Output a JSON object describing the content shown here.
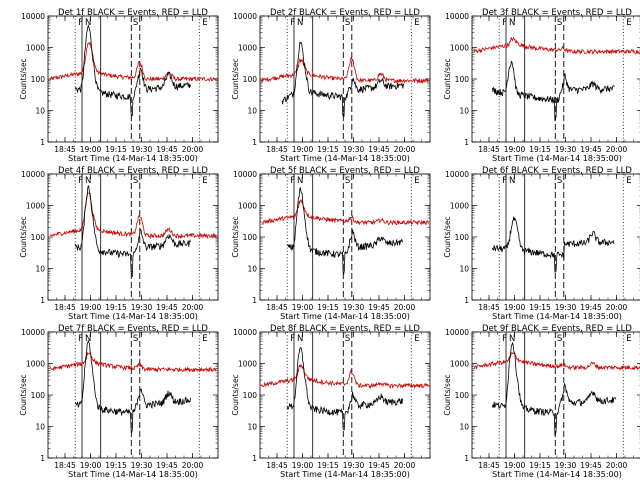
{
  "figure": {
    "xlabel": "Start Time (14-Mar-14 18:35:00)",
    "ylabel": "Counts/sec"
  },
  "chart_data": [
    {
      "type": "line",
      "title": "Det 1f BLACK = Events, RED = LLD",
      "ylim": [
        1,
        10000
      ],
      "yscale": "log",
      "xlim": [
        "18:35",
        "20:15"
      ],
      "x_ticks": [
        "18:45",
        "19:00",
        "19:15",
        "19:30",
        "19:45",
        "20:00"
      ],
      "y_ticks": [
        "1",
        "10",
        "100",
        "1000",
        "10000"
      ],
      "markers": [
        "F",
        "N",
        "S",
        "E"
      ],
      "events": {
        "red": {
          "base": 100,
          "start": [
            130,
            0,
            0
          ],
          "peak": [
            2.2,
            5.0,
            3.2,
            1.6
          ],
          "end": [
            125,
            0,
            0
          ]
        },
        "black": {
          "base": 25,
          "peak": [
            9.0,
            17,
            5.4,
            2.4
          ],
          "pre": [
            50,
            18,
            0
          ],
          "post": [
            45,
            65,
            0
          ],
          "start": "18:51",
          "end": "19:59"
        }
      }
    },
    {
      "type": "line",
      "title": "Det 2f BLACK = Events, RED = LLD",
      "ylim": [
        1,
        10000
      ],
      "yscale": "log",
      "xlim": [
        "18:35",
        "20:15"
      ],
      "x_ticks": [
        "18:45",
        "19:00",
        "19:15",
        "19:30",
        "19:45",
        "20:00"
      ],
      "y_ticks": [
        "1",
        "10",
        "100",
        "1000",
        "10000"
      ],
      "markers": [
        "F",
        "N",
        "S",
        "E"
      ],
      "events": {
        "red": {
          "base": 90,
          "start": [
            80,
            0,
            0
          ],
          "peak": [
            1.4,
            2.0,
            4.5,
            1.6
          ],
          "end": [
            70,
            0,
            0
          ]
        },
        "black": {
          "base": 25,
          "peak": [
            5.0,
            9.2,
            2.6,
            1.6
          ],
          "pre": [
            20,
            18,
            0
          ],
          "post": [
            45,
            65,
            0
          ],
          "start": "18:48",
          "end": "20:00"
        }
      }
    },
    {
      "type": "line",
      "title": "Det 3f BLACK = Events, RED = LLD",
      "ylim": [
        1,
        10000
      ],
      "yscale": "log",
      "xlim": [
        "18:35",
        "20:15"
      ],
      "x_ticks": [
        "18:45",
        "19:00",
        "19:15",
        "19:30",
        "19:45",
        "20:00"
      ],
      "y_ticks": [
        "1",
        "10",
        "100",
        "1000",
        "10000"
      ],
      "markers": [
        "F",
        "N",
        "S",
        "E"
      ],
      "events": {
        "red": {
          "base": 750,
          "start": [
            720,
            0,
            0
          ],
          "peak": [
            1.15,
            1.25,
            1.2,
            1.0
          ],
          "end": [
            720,
            0,
            0
          ]
        },
        "black": {
          "base": 20,
          "peak": [
            10,
            0,
            3.0,
            1.5
          ],
          "pre": [
            45,
            25,
            0
          ],
          "post": [
            45,
            50,
            0
          ],
          "start": "18:47",
          "end": "19:59"
        }
      }
    },
    {
      "type": "line",
      "title": "Det 4f BLACK = Events, RED = LLD",
      "ylim": [
        1,
        10000
      ],
      "yscale": "log",
      "xlim": [
        "18:35",
        "20:15"
      ],
      "x_ticks": [
        "18:45",
        "19:00",
        "19:15",
        "19:30",
        "19:45",
        "20:00"
      ],
      "y_ticks": [
        "1",
        "10",
        "100",
        "1000",
        "10000"
      ],
      "markers": [
        "F",
        "N",
        "S",
        "E"
      ],
      "events": {
        "red": {
          "base": 110,
          "start": [
            100,
            0,
            0
          ],
          "peak": [
            4.0,
            4.8,
            4.0,
            1.6
          ],
          "end": [
            110,
            0,
            0
          ]
        },
        "black": {
          "base": 25,
          "peak": [
            9.0,
            14,
            3.5,
            2.0
          ],
          "pre": [
            50,
            18,
            0
          ],
          "post": [
            45,
            65,
            0
          ],
          "start": "18:51",
          "end": "19:59"
        }
      }
    },
    {
      "type": "line",
      "title": "Det 5f BLACK = Events, RED = LLD",
      "ylim": [
        1,
        10000
      ],
      "yscale": "log",
      "xlim": [
        "18:35",
        "20:15"
      ],
      "x_ticks": [
        "18:45",
        "19:00",
        "19:15",
        "19:30",
        "19:45",
        "20:00"
      ],
      "y_ticks": [
        "1",
        "10",
        "100",
        "1000",
        "10000"
      ],
      "markers": [
        "F",
        "N",
        "S",
        "E"
      ],
      "events": {
        "red": {
          "base": 290,
          "start": [
            280,
            0,
            0
          ],
          "peak": [
            1.6,
            2.0,
            1.4,
            1.2
          ],
          "end": [
            280,
            0,
            0
          ]
        },
        "black": {
          "base": 25,
          "peak": [
            7.5,
            14,
            3.5,
            1.6
          ],
          "pre": [
            50,
            18,
            0
          ],
          "post": [
            45,
            70,
            0
          ],
          "start": "18:51",
          "end": "19:59"
        }
      }
    },
    {
      "type": "line",
      "title": "Det 6f BLACK = Events, RED = LLD",
      "ylim": [
        1,
        10000
      ],
      "yscale": "log",
      "xlim": [
        "18:35",
        "20:15"
      ],
      "x_ticks": [
        "18:45",
        "19:00",
        "19:15",
        "19:30",
        "19:45",
        "20:00"
      ],
      "y_ticks": [
        "1",
        "10",
        "100",
        "1000",
        "10000"
      ],
      "markers": [
        "F",
        "N",
        "S",
        "E"
      ],
      "events": {
        "red": null,
        "black": {
          "base": 25,
          "peak": [
            0,
            8.0,
            0,
            2.0
          ],
          "pre": [
            45,
            20,
            0
          ],
          "post": [
            60,
            70,
            0
          ],
          "start": "18:47",
          "end": "19:59"
        }
      }
    },
    {
      "type": "line",
      "title": "Det 7f BLACK = Events, RED = LLD",
      "ylim": [
        1,
        10000
      ],
      "yscale": "log",
      "xlim": [
        "18:35",
        "20:15"
      ],
      "x_ticks": [
        "18:45",
        "19:00",
        "19:15",
        "19:30",
        "19:45",
        "20:00"
      ],
      "y_ticks": [
        "1",
        "10",
        "100",
        "1000",
        "10000"
      ],
      "markers": [
        "F",
        "N",
        "S",
        "E"
      ],
      "events": {
        "red": {
          "base": 650,
          "start": [
            650,
            0,
            0
          ],
          "peak": [
            1.3,
            1.5,
            1.3,
            1.0
          ],
          "end": [
            650,
            0,
            0
          ]
        },
        "black": {
          "base": 25,
          "peak": [
            10,
            16,
            4.0,
            2.0
          ],
          "pre": [
            50,
            18,
            0
          ],
          "post": [
            45,
            70,
            0
          ],
          "start": "18:51",
          "end": "19:59"
        }
      }
    },
    {
      "type": "line",
      "title": "Det 8f BLACK = Events, RED = LLD",
      "ylim": [
        1,
        10000
      ],
      "yscale": "log",
      "xlim": [
        "18:35",
        "20:15"
      ],
      "x_ticks": [
        "18:45",
        "19:00",
        "19:15",
        "19:30",
        "19:45",
        "20:00"
      ],
      "y_ticks": [
        "1",
        "10",
        "100",
        "1000",
        "10000"
      ],
      "markers": [
        "F",
        "N",
        "S",
        "E"
      ],
      "events": {
        "red": {
          "base": 200,
          "start": [
            180,
            0,
            0
          ],
          "peak": [
            1.4,
            2.0,
            2.6,
            1.2
          ],
          "end": [
            200,
            0,
            0
          ]
        },
        "black": {
          "base": 25,
          "peak": [
            7.0,
            14,
            2.5,
            1.6
          ],
          "pre": [
            45,
            18,
            0
          ],
          "post": [
            45,
            65,
            0
          ],
          "start": "18:51",
          "end": "19:59"
        }
      }
    },
    {
      "type": "line",
      "title": "Det 9f BLACK = Events, RED = LLD",
      "ylim": [
        1,
        10000
      ],
      "yscale": "log",
      "xlim": [
        "18:35",
        "20:15"
      ],
      "x_ticks": [
        "18:45",
        "19:00",
        "19:15",
        "19:30",
        "19:45",
        "20:00"
      ],
      "y_ticks": [
        "1",
        "10",
        "100",
        "1000",
        "10000"
      ],
      "markers": [
        "F",
        "N",
        "S",
        "E"
      ],
      "events": {
        "red": {
          "base": 750,
          "start": [
            740,
            0,
            0
          ],
          "peak": [
            1.2,
            1.35,
            1.2,
            1.35
          ],
          "end": [
            720,
            0,
            0
          ]
        },
        "black": {
          "base": 25,
          "peak": [
            10,
            16,
            4.0,
            2.0
          ],
          "pre": [
            50,
            18,
            0
          ],
          "post": [
            55,
            70,
            0
          ],
          "start": "18:47",
          "end": "20:00"
        }
      }
    }
  ],
  "times": {
    "solid_lines": [
      "18:55",
      "19:06"
    ],
    "dashed_lines": [
      "19:24",
      "19:29"
    ],
    "dotted_lines": [
      "18:51",
      "20:04"
    ],
    "peaks": [
      "18:58",
      "19:00",
      "19:29",
      "19:46"
    ]
  },
  "colors": {
    "events": "#000000",
    "lld": "#cc0000",
    "background": "#ffffff"
  }
}
